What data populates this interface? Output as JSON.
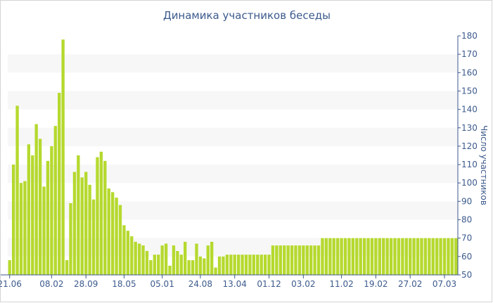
{
  "chart_data": {
    "type": "bar",
    "title": "Динамика участников беседы",
    "ylabel": "Число участников",
    "xlabel": "",
    "ylim": [
      50,
      180
    ],
    "yticks": [
      50,
      60,
      70,
      80,
      90,
      100,
      110,
      120,
      130,
      140,
      150,
      160,
      170,
      180
    ],
    "grid": "alternating horizontal bands",
    "bar_color": "#b5d92e",
    "x_tick_labels": [
      {
        "label": "21.06",
        "index": 0
      },
      {
        "label": "08.02",
        "index": 11
      },
      {
        "label": "28.09",
        "index": 20
      },
      {
        "label": "18.05",
        "index": 30
      },
      {
        "label": "05.01",
        "index": 40
      },
      {
        "label": "24.08",
        "index": 50
      },
      {
        "label": "13.04",
        "index": 59
      },
      {
        "label": "01.12",
        "index": 68
      },
      {
        "label": "03.02",
        "index": 77
      },
      {
        "label": "11.02",
        "index": 87
      },
      {
        "label": "19.02",
        "index": 96
      },
      {
        "label": "27.02",
        "index": 105
      },
      {
        "label": "07.03",
        "index": 114
      }
    ],
    "values": [
      58,
      110,
      142,
      100,
      101,
      121,
      115,
      132,
      124,
      98,
      112,
      120,
      131,
      149,
      178,
      58,
      89,
      106,
      115,
      103,
      106,
      99,
      91,
      114,
      117,
      112,
      97,
      95,
      92,
      88,
      77,
      74,
      71,
      68,
      67,
      66,
      63,
      58,
      61,
      61,
      66,
      67,
      55,
      66,
      63,
      61,
      68,
      58,
      58,
      67,
      60,
      59,
      66,
      68,
      54,
      60,
      60,
      61,
      61,
      61,
      61,
      61,
      61,
      61,
      61,
      61,
      61,
      61,
      61,
      66,
      66,
      66,
      66,
      66,
      66,
      66,
      66,
      66,
      66,
      66,
      66,
      66,
      70,
      70,
      70,
      70,
      70,
      70,
      70,
      70,
      70,
      70,
      70,
      70,
      70,
      70,
      70,
      70,
      70,
      70,
      70,
      70,
      70,
      70,
      70,
      70,
      70,
      70,
      70,
      70,
      70,
      70,
      70,
      70,
      70,
      70,
      70,
      70
    ]
  }
}
